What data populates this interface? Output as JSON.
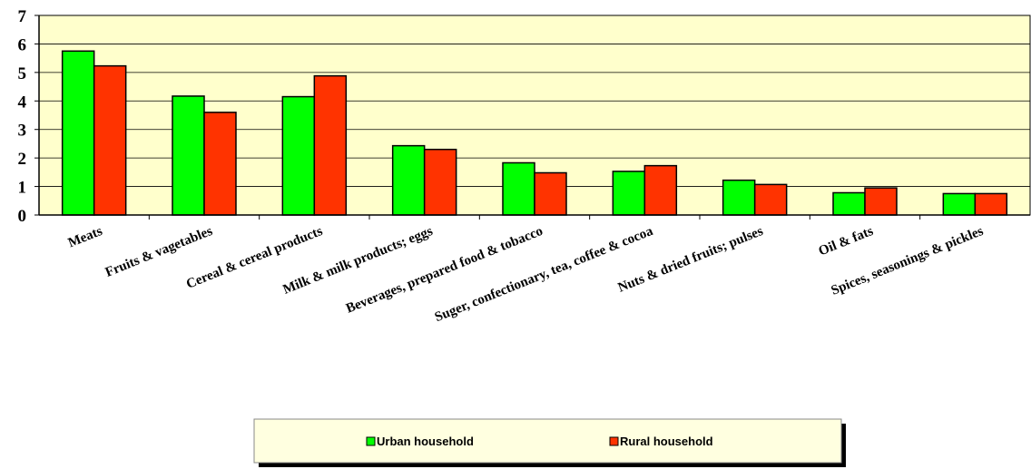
{
  "chart_data": {
    "type": "bar",
    "title": "",
    "xlabel": "",
    "ylabel": "",
    "ylim": [
      0,
      7
    ],
    "yticks": [
      0,
      1,
      2,
      3,
      4,
      5,
      6,
      7
    ],
    "grid": true,
    "legend_position": "bottom",
    "plot_background": "#FFFFCC",
    "categories": [
      "Meats",
      "Fruits & vagetables",
      "Cereal & cereal products",
      "Milk & milk products; eggs",
      "Beverages, prepared food & tobacco",
      "Suger, confectionary, tea, coffee & cocoa",
      "Nuts & dried fruits; pulses",
      "Oil & fats",
      "Spices, seasonings &  pickles"
    ],
    "series": [
      {
        "name": "Urban household",
        "color": "#00FF00",
        "values": [
          5.75,
          4.17,
          4.15,
          2.43,
          1.83,
          1.53,
          1.22,
          0.78,
          0.75
        ]
      },
      {
        "name": "Rural household",
        "color": "#FF3300",
        "values": [
          5.23,
          3.6,
          4.88,
          2.3,
          1.48,
          1.73,
          1.07,
          0.95,
          0.75
        ]
      }
    ]
  }
}
